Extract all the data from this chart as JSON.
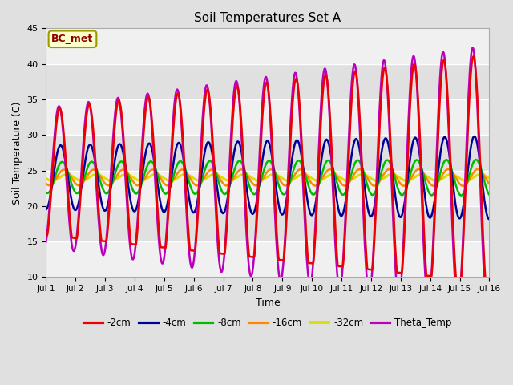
{
  "title": "Soil Temperatures Set A",
  "xlabel": "Time",
  "ylabel": "Soil Temperature (C)",
  "ylim": [
    10,
    45
  ],
  "annotation": "BC_met",
  "annotation_color": "#8B0000",
  "annotation_bg": "#FFFFCC",
  "annotation_border": "#999900",
  "bg_color": "#E0E0E0",
  "plot_bg_light": "#F0F0F0",
  "plot_bg_dark": "#E0E0E0",
  "series_order": [
    "-2cm",
    "-4cm",
    "-8cm",
    "-16cm",
    "-32cm",
    "Theta_Temp"
  ],
  "series": {
    "-2cm": {
      "color": "#EE0000",
      "lw": 1.8
    },
    "-4cm": {
      "color": "#000099",
      "lw": 1.8
    },
    "-8cm": {
      "color": "#00BB00",
      "lw": 1.8
    },
    "-16cm": {
      "color": "#FF8800",
      "lw": 1.8
    },
    "-32cm": {
      "color": "#DDDD00",
      "lw": 2.2
    },
    "Theta_Temp": {
      "color": "#BB00BB",
      "lw": 1.8
    }
  },
  "tick_labels": [
    "Jul 1",
    "Jul 2",
    "Jul 3",
    "Jul 4",
    "Jul 5",
    "Jul 6",
    "Jul 7",
    "Jul 8",
    "Jul 9",
    "Jul 10",
    "Jul 11",
    "Jul 12",
    "Jul 13",
    "Jul 14",
    "Jul 15",
    "Jul 16"
  ],
  "tick_positions": [
    0,
    1,
    2,
    3,
    4,
    5,
    6,
    7,
    8,
    9,
    10,
    11,
    12,
    13,
    14,
    15
  ],
  "yticks": [
    10,
    15,
    20,
    25,
    30,
    35,
    40,
    45
  ]
}
